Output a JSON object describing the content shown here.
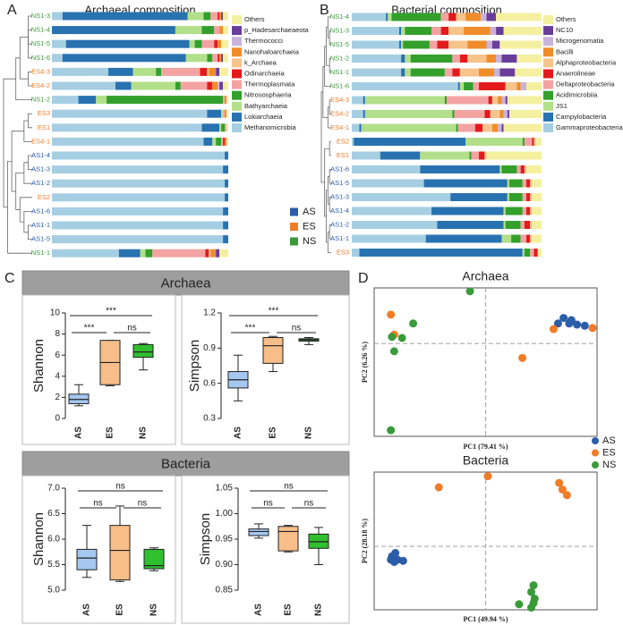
{
  "chart_data": [
    {
      "type": "stacked_bar",
      "panel": "A",
      "title": "Archaeal composition",
      "xlim": [
        0,
        100
      ],
      "categories": [
        "NS1-3",
        "NS1-4",
        "NS1-5",
        "NS1-6",
        "ES4-3",
        "ES4-2",
        "NS1-2",
        "ES3",
        "ES1",
        "ES4-1",
        "AS1-4",
        "AS1-3",
        "AS1-2",
        "ES2",
        "AS1-6",
        "AS1-1",
        "AS1-5",
        "NS1-1"
      ],
      "category_colors": [
        "#3a9a3a",
        "#3a9a3a",
        "#3a9a3a",
        "#3a9a3a",
        "#f07c28",
        "#f07c28",
        "#3a9a3a",
        "#f07c28",
        "#f07c28",
        "#f07c28",
        "#2b5da8",
        "#2b5da8",
        "#2b5da8",
        "#f07c28",
        "#2b5da8",
        "#2b5da8",
        "#2b5da8",
        "#3a9a3a"
      ],
      "series": [
        {
          "name": "Methanomicrobia",
          "color": "#a6cee3",
          "values": [
            6,
            0,
            8,
            6,
            32,
            36,
            15,
            88,
            85,
            86,
            98,
            97,
            98,
            98,
            97,
            97,
            97,
            38
          ]
        },
        {
          "name": "Lokiarchaeia",
          "color": "#2872b0",
          "values": [
            71,
            70,
            70,
            70,
            14,
            9,
            10,
            8,
            10,
            5,
            2,
            3,
            2,
            2,
            3,
            3,
            3,
            12
          ]
        },
        {
          "name": "Bathyarchaeia",
          "color": "#b2df8a",
          "values": [
            9,
            15,
            3,
            12,
            13,
            25,
            6,
            1,
            1,
            2,
            0,
            0,
            0,
            0,
            0,
            0,
            0,
            3
          ]
        },
        {
          "name": "Nitrososphaeria",
          "color": "#33a02c",
          "values": [
            4,
            7,
            4,
            3,
            3,
            3,
            66,
            0,
            2,
            3,
            0,
            0,
            0,
            0,
            0,
            0,
            0,
            4
          ]
        },
        {
          "name": "Thermoplasmata",
          "color": "#f4a3a3",
          "values": [
            4,
            3,
            7,
            3,
            22,
            15,
            1,
            1,
            1,
            1,
            0,
            0,
            0,
            0,
            0,
            0,
            0,
            30
          ]
        },
        {
          "name": "Odinarchaeia",
          "color": "#e31a1c",
          "values": [
            1,
            0,
            2,
            1,
            4,
            3,
            0,
            0,
            0,
            1,
            0,
            0,
            0,
            0,
            0,
            0,
            0,
            2
          ]
        },
        {
          "name": "k_Archaea",
          "color": "#f7c48c",
          "values": [
            0,
            0,
            0,
            0,
            1,
            0,
            0,
            0,
            0,
            0,
            0,
            0,
            0,
            0,
            0,
            0,
            0,
            1
          ]
        },
        {
          "name": "Nanohaloarchaeia",
          "color": "#f08c2a",
          "values": [
            1,
            2,
            2,
            1,
            4,
            3,
            1,
            1,
            0,
            1,
            0,
            0,
            0,
            0,
            0,
            0,
            0,
            3
          ]
        },
        {
          "name": "Thermococci",
          "color": "#c9b3d9",
          "values": [
            0,
            0,
            0,
            0,
            0,
            1,
            0,
            0,
            0,
            0,
            0,
            0,
            0,
            0,
            0,
            0,
            0,
            0
          ]
        },
        {
          "name": "p_Hadesarchaeaeota",
          "color": "#6a3d9a",
          "values": [
            1,
            0,
            0,
            1,
            2,
            2,
            0,
            0,
            0,
            0,
            0,
            0,
            0,
            0,
            0,
            0,
            0,
            2
          ]
        },
        {
          "name": "Others",
          "color": "#f5f0a0",
          "values": [
            3,
            3,
            4,
            3,
            5,
            3,
            1,
            1,
            1,
            1,
            0,
            0,
            0,
            0,
            0,
            0,
            0,
            5
          ]
        }
      ],
      "groups": [
        {
          "name": "AS",
          "color": "#2b5da8"
        },
        {
          "name": "ES",
          "color": "#f07c28"
        },
        {
          "name": "NS",
          "color": "#3a9a3a"
        }
      ]
    },
    {
      "type": "stacked_bar",
      "panel": "B",
      "title": "Bacterial composition",
      "xlim": [
        0,
        100
      ],
      "categories": [
        "NS1-4",
        "NS1-3",
        "NS1-5",
        "NS1-2",
        "NS1-1",
        "NS1-6",
        "ES4-3",
        "ES4-2",
        "ES4-1",
        "ES2",
        "ES1",
        "AS1-6",
        "AS1-5",
        "AS1-3",
        "AS1-4",
        "AS1-2",
        "AS1-1",
        "ES3"
      ],
      "category_colors": [
        "#3a9a3a",
        "#3a9a3a",
        "#3a9a3a",
        "#3a9a3a",
        "#3a9a3a",
        "#3a9a3a",
        "#f07c28",
        "#f07c28",
        "#f07c28",
        "#f07c28",
        "#f07c28",
        "#2b5da8",
        "#2b5da8",
        "#2b5da8",
        "#2b5da8",
        "#2b5da8",
        "#2b5da8",
        "#f07c28"
      ],
      "series": [
        {
          "name": "Gammaproteobacteria",
          "color": "#a6cee3",
          "values": [
            18,
            25,
            25,
            26,
            26,
            56,
            6,
            6,
            4,
            1,
            15,
            36,
            38,
            52,
            42,
            45,
            39,
            4
          ]
        },
        {
          "name": "Campylobacteria",
          "color": "#2872b0",
          "values": [
            1,
            1,
            1,
            2,
            2,
            1,
            1,
            1,
            1,
            59,
            21,
            42,
            44,
            30,
            38,
            35,
            40,
            86
          ]
        },
        {
          "name": "JS1",
          "color": "#b2df8a",
          "values": [
            2,
            2,
            1,
            3,
            3,
            2,
            42,
            46,
            50,
            30,
            26,
            1,
            1,
            1,
            1,
            1,
            5,
            1
          ]
        },
        {
          "name": "Acidimicrobiia",
          "color": "#33a02c",
          "values": [
            26,
            14,
            14,
            22,
            18,
            5,
            1,
            1,
            1,
            1,
            1,
            8,
            7,
            7,
            9,
            8,
            5,
            3
          ]
        },
        {
          "name": "Deltaproteobacteria",
          "color": "#f4a3a3",
          "values": [
            4,
            5,
            4,
            4,
            4,
            3,
            22,
            16,
            9,
            4,
            4,
            2,
            2,
            2,
            2,
            2,
            3,
            2
          ]
        },
        {
          "name": "Anaerolineae",
          "color": "#e31a1c",
          "values": [
            4,
            4,
            6,
            4,
            4,
            14,
            2,
            3,
            4,
            1,
            3,
            2,
            2,
            2,
            2,
            3,
            2,
            2
          ]
        },
        {
          "name": "Alphaproteobacteria",
          "color": "#f7c48c",
          "values": [
            5,
            8,
            10,
            10,
            10,
            6,
            3,
            5,
            5,
            1,
            1,
            1,
            1,
            1,
            1,
            1,
            1,
            0
          ]
        },
        {
          "name": "Bacilli",
          "color": "#f08c2a",
          "values": [
            8,
            14,
            10,
            5,
            8,
            2,
            2,
            2,
            3,
            0,
            0,
            0,
            0,
            0,
            0,
            0,
            0,
            0
          ]
        },
        {
          "name": "Microgenomatia",
          "color": "#c9b3d9",
          "values": [
            3,
            3,
            3,
            3,
            3,
            3,
            2,
            2,
            2,
            0,
            0,
            0,
            0,
            0,
            0,
            0,
            0,
            0
          ]
        },
        {
          "name": "NC10",
          "color": "#6a3d9a",
          "values": [
            5,
            4,
            4,
            8,
            8,
            0,
            1,
            1,
            1,
            0,
            0,
            0,
            0,
            0,
            0,
            0,
            0,
            0
          ]
        },
        {
          "name": "Others",
          "color": "#f5f0a0",
          "values": [
            24,
            20,
            22,
            13,
            14,
            8,
            18,
            17,
            20,
            3,
            29,
            8,
            5,
            5,
            5,
            5,
            5,
            2
          ]
        }
      ]
    },
    {
      "type": "box",
      "panel": "C",
      "section": "Archaea",
      "ylabel": "Shannon",
      "categories": [
        "AS",
        "ES",
        "NS"
      ],
      "colors": [
        "#a6c8f0",
        "#f7be8a",
        "#2fbf2f"
      ],
      "ylim": [
        0,
        10
      ],
      "yticks": [
        0,
        2,
        4,
        6,
        8,
        10
      ],
      "boxes": [
        {
          "min": 1.2,
          "q1": 1.4,
          "median": 1.8,
          "q3": 2.3,
          "max": 3.2
        },
        {
          "min": 3.1,
          "q1": 3.2,
          "median": 5.3,
          "q3": 7.4,
          "max": 7.4
        },
        {
          "min": 4.6,
          "q1": 5.8,
          "median": 6.3,
          "q3": 7.0,
          "max": 7.1
        }
      ],
      "annotations": [
        {
          "text": "***",
          "between": [
            "AS",
            "NS"
          ]
        },
        {
          "text": "***",
          "between": [
            "AS",
            "ES"
          ]
        },
        {
          "text": "ns",
          "between": [
            "ES",
            "NS"
          ]
        }
      ]
    },
    {
      "type": "box",
      "ylabel": "Simpson",
      "categories": [
        "AS",
        "ES",
        "NS"
      ],
      "colors": [
        "#a6c8f0",
        "#f7be8a",
        "#2fbf2f"
      ],
      "ylim": [
        0.3,
        1.2
      ],
      "yticks": [
        0.3,
        0.6,
        0.9,
        1.2
      ],
      "boxes": [
        {
          "min": 0.45,
          "q1": 0.56,
          "median": 0.63,
          "q3": 0.7,
          "max": 0.84
        },
        {
          "min": 0.7,
          "q1": 0.77,
          "median": 0.92,
          "q3": 0.99,
          "max": 1.0
        },
        {
          "min": 0.93,
          "q1": 0.96,
          "median": 0.97,
          "q3": 0.98,
          "max": 0.99
        }
      ],
      "annotations": [
        {
          "text": "***",
          "between": [
            "AS",
            "NS"
          ]
        },
        {
          "text": "***",
          "between": [
            "AS",
            "ES"
          ]
        },
        {
          "text": "ns",
          "between": [
            "ES",
            "NS"
          ]
        }
      ]
    },
    {
      "type": "box",
      "section": "Bacteria",
      "ylabel": "Shannon",
      "categories": [
        "AS",
        "ES",
        "NS"
      ],
      "colors": [
        "#a6c8f0",
        "#f7be8a",
        "#2fbf2f"
      ],
      "ylim": [
        5,
        7
      ],
      "yticks": [
        {
          "value": 5,
          "label": "5.0"
        },
        5.5,
        {
          "value": 6,
          "label": "6.0"
        },
        6.5,
        {
          "value": 7,
          "label": "7.0"
        }
      ],
      "boxes": [
        {
          "min": 5.25,
          "q1": 5.4,
          "median": 5.63,
          "q3": 5.8,
          "max": 6.27
        },
        {
          "min": 5.17,
          "q1": 5.2,
          "median": 5.78,
          "q3": 6.27,
          "max": 6.65
        },
        {
          "min": 5.38,
          "q1": 5.42,
          "median": 5.48,
          "q3": 5.8,
          "max": 5.83
        }
      ],
      "annotations": [
        {
          "text": "ns",
          "between": [
            "AS",
            "NS"
          ]
        },
        {
          "text": "ns",
          "between": [
            "AS",
            "ES"
          ]
        },
        {
          "text": "ns",
          "between": [
            "ES",
            "NS"
          ]
        }
      ]
    },
    {
      "type": "box",
      "ylabel": "Simpson",
      "categories": [
        "AS",
        "ES",
        "NS"
      ],
      "colors": [
        "#a6c8f0",
        "#f7be8a",
        "#2fbf2f"
      ],
      "ylim": [
        0.85,
        1.05
      ],
      "yticks": [
        0.85,
        {
          "value": 0.9,
          "label": "0.90"
        },
        0.95,
        {
          "value": 1,
          "label": "1.00"
        },
        1.05
      ],
      "boxes": [
        {
          "min": 0.952,
          "q1": 0.957,
          "median": 0.965,
          "q3": 0.97,
          "max": 0.98
        },
        {
          "min": 0.925,
          "q1": 0.927,
          "median": 0.965,
          "q3": 0.975,
          "max": 0.977
        },
        {
          "min": 0.9,
          "q1": 0.932,
          "median": 0.945,
          "q3": 0.96,
          "max": 0.973
        }
      ],
      "annotations": [
        {
          "text": "ns",
          "between": [
            "AS",
            "NS"
          ]
        },
        {
          "text": "ns",
          "between": [
            "AS",
            "ES"
          ]
        },
        {
          "text": "ns",
          "between": [
            "ES",
            "NS"
          ]
        }
      ]
    },
    {
      "type": "scatter",
      "panel": "D",
      "title": "Archaea",
      "xlabel": "PC1 (79.41 %)",
      "ylabel": "PC2 (6.26 %)",
      "xlim": [
        -1,
        1
      ],
      "ylim": [
        -0.835,
        0.5
      ],
      "series": [
        {
          "name": "AS",
          "color": "#2b5da8",
          "x": [
            0.7,
            0.65,
            0.75,
            0.82,
            0.89,
            0.77
          ],
          "values": [
            0.23,
            0.18,
            0.18,
            0.17,
            0.16,
            0.21
          ]
        },
        {
          "name": "ES",
          "color": "#f07c28",
          "x": [
            -0.85,
            -0.82,
            0.61,
            0.33,
            0.96
          ],
          "values": [
            0.26,
            0.08,
            0.13,
            -0.13,
            0.14
          ]
        },
        {
          "name": "NS",
          "color": "#3a9a3a",
          "x": [
            -0.14,
            -0.65,
            -0.84,
            -0.75,
            -0.82,
            -0.85
          ],
          "values": [
            0.47,
            0.18,
            0.06,
            0.05,
            -0.07,
            -0.78
          ]
        }
      ]
    },
    {
      "type": "scatter",
      "title": "Bacteria",
      "xlabel": "PC1 (49.94 %)",
      "ylabel": "PC2 (28.18 %)",
      "xlim": [
        -1,
        1
      ],
      "ylim": [
        -0.57,
        0.667
      ],
      "series": [
        {
          "color": "#2b5da8",
          "x": [
            -0.81,
            -0.84,
            -0.79,
            -0.85,
            -0.74,
            -0.82
          ],
          "values": [
            -0.06,
            -0.09,
            -0.12,
            -0.12,
            -0.13,
            -0.14
          ]
        },
        {
          "color": "#f07c28",
          "x": [
            -0.42,
            0.02,
            0.66,
            0.69,
            0.73
          ],
          "values": [
            0.53,
            0.63,
            0.57,
            0.51,
            0.46
          ]
        },
        {
          "color": "#3a9a3a",
          "x": [
            0.43,
            0.41,
            0.44,
            0.43,
            0.41,
            0.3
          ],
          "values": [
            -0.35,
            -0.41,
            -0.47,
            -0.51,
            -0.55,
            -0.52
          ]
        }
      ]
    }
  ]
}
